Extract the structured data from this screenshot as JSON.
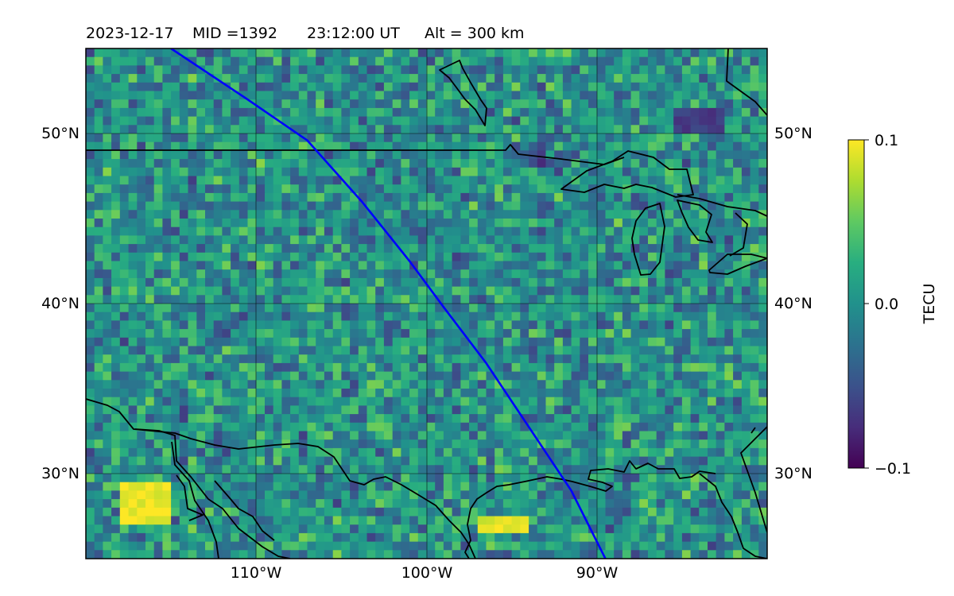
{
  "title": {
    "date": "2023-12-17",
    "mid": "MID =1392",
    "time": "23:12:00  UT",
    "alt": "Alt = 300 km"
  },
  "map": {
    "lon_range": [
      -120,
      -80
    ],
    "lat_range": [
      25,
      55
    ],
    "grid": true,
    "lat_ticks": [
      {
        "value": 50,
        "label": "50°N"
      },
      {
        "value": 40,
        "label": "40°N"
      },
      {
        "value": 30,
        "label": "30°N"
      }
    ],
    "lon_ticks": [
      {
        "value": -110,
        "label": "110°W"
      },
      {
        "value": -100,
        "label": "100°W"
      },
      {
        "value": -90,
        "label": "90°W"
      }
    ],
    "field_description": "TEC perturbation field, mostly near 0 TECU with positive patches (~0.1) near the Gulf coast of Mexico/Texas and negative patches over northern Ontario",
    "colors": {
      "track": "#0000ff",
      "coastline": "#000000"
    }
  },
  "track": {
    "name": "satellite-ground-track",
    "points": [
      {
        "lon": -115,
        "lat": 55
      },
      {
        "lon": -110.5,
        "lat": 52
      },
      {
        "lon": -107,
        "lat": 49.6
      },
      {
        "lon": -103.8,
        "lat": 46
      },
      {
        "lon": -101,
        "lat": 42.5
      },
      {
        "lon": -99,
        "lat": 39.8
      },
      {
        "lon": -96.5,
        "lat": 36.5
      },
      {
        "lon": -93.5,
        "lat": 32
      },
      {
        "lon": -91.5,
        "lat": 29
      },
      {
        "lon": -89.5,
        "lat": 25
      }
    ]
  },
  "colorbar": {
    "label": "TECU",
    "vmin": -0.1,
    "vmax": 0.1,
    "colormap": "viridis",
    "ticks": [
      {
        "value": 0.1,
        "label": "0.1"
      },
      {
        "value": 0.0,
        "label": "0.0"
      },
      {
        "value": -0.1,
        "label": "−0.1"
      }
    ]
  }
}
